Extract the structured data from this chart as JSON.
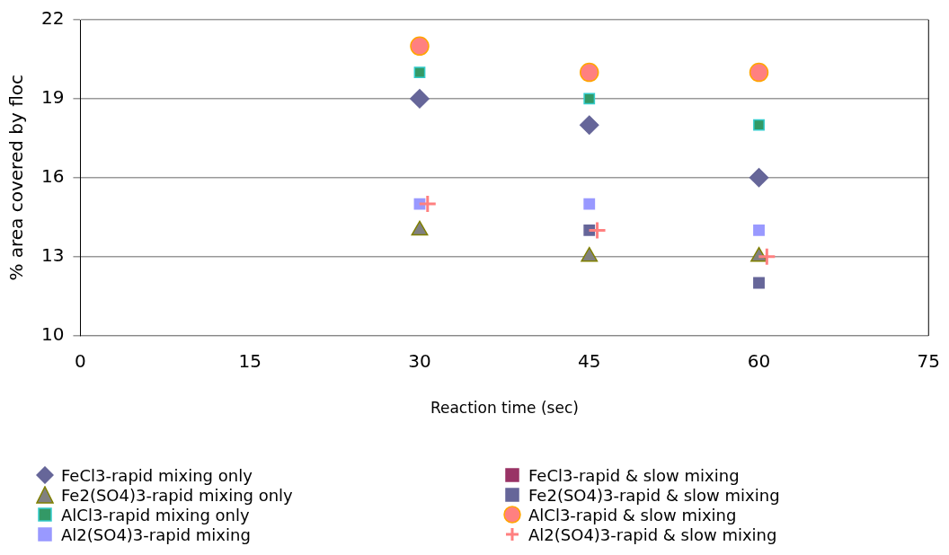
{
  "chart_data": {
    "type": "scatter",
    "xlabel": "Reaction time (sec)",
    "ylabel": "% area covered by floc",
    "x": [
      30,
      45,
      60
    ],
    "xlim": [
      0,
      75
    ],
    "xticks": [
      0,
      15,
      30,
      45,
      60,
      75
    ],
    "ylim": [
      10,
      22
    ],
    "yticks": [
      10,
      13,
      16,
      19,
      22
    ],
    "grid": "y",
    "legend": "bottom",
    "series": [
      {
        "name": "FeCl3-rapid mixing only",
        "color": "#666699",
        "marker": "diamond",
        "values": [
          19,
          18,
          16
        ]
      },
      {
        "name": "Fe2(SO4)3-rapid mixing only",
        "color": "#808080",
        "marker": "triangle",
        "values": [
          14,
          13,
          13
        ]
      },
      {
        "name": "AlCl3-rapid mixing only",
        "color": "#339966",
        "marker": "square",
        "values": [
          20,
          19,
          18
        ]
      },
      {
        "name": "Al2(SO4)3-rapid mixing",
        "color": "#9999ff",
        "marker": "square",
        "values": [
          15,
          15,
          14
        ]
      },
      {
        "name": "FeCl3-rapid & slow mixing",
        "color": "#993366",
        "marker": "square",
        "values": [
          null,
          null,
          null
        ]
      },
      {
        "name": "Fe2(SO4)3-rapid & slow mixing",
        "color": "#666699",
        "marker": "square",
        "values": [
          null,
          14,
          12
        ]
      },
      {
        "name": "AlCl3-rapid & slow mixing",
        "color": "#ff8080",
        "marker": "circle",
        "values": [
          21,
          20,
          20
        ]
      },
      {
        "name": "Al2(SO4)3-rapid & slow mixing",
        "color": "#ff8080",
        "marker": "cross",
        "x": [
          30.7,
          45.7,
          60.7
        ],
        "values": [
          15,
          14,
          13
        ]
      }
    ]
  }
}
